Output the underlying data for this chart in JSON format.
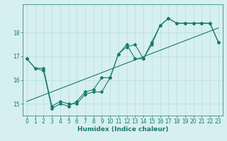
{
  "xlabel": "Humidex (Indice chaleur)",
  "ylabel": "",
  "bg_color": "#d6eff0",
  "grid_color": "#b8dde0",
  "line_color": "#1a7a6e",
  "xlim": [
    -0.5,
    23.5
  ],
  "ylim": [
    14.5,
    19.2
  ],
  "yticks": [
    15,
    16,
    17,
    18
  ],
  "xticks": [
    0,
    1,
    2,
    3,
    4,
    5,
    6,
    7,
    8,
    9,
    10,
    11,
    12,
    13,
    14,
    15,
    16,
    17,
    18,
    19,
    20,
    21,
    22,
    23
  ],
  "series1_x": [
    0,
    1,
    2,
    3,
    4,
    5,
    6,
    7,
    8,
    9,
    10,
    11,
    12,
    13,
    14,
    15,
    16,
    17,
    18,
    19,
    20,
    21,
    22,
    23
  ],
  "series1_y": [
    16.9,
    16.5,
    16.5,
    14.9,
    15.1,
    15.0,
    15.0,
    15.4,
    15.5,
    15.5,
    16.1,
    17.1,
    17.4,
    17.5,
    16.9,
    17.6,
    18.3,
    18.6,
    18.4,
    18.4,
    18.4,
    18.4,
    18.4,
    17.6
  ],
  "series2_x": [
    0,
    1,
    2,
    3,
    4,
    5,
    6,
    7,
    8,
    9,
    10,
    11,
    12,
    13,
    14,
    15,
    16,
    17,
    18,
    19,
    20,
    21,
    22,
    23
  ],
  "series2_y": [
    16.9,
    16.5,
    16.4,
    14.8,
    15.0,
    14.9,
    15.1,
    15.5,
    15.6,
    16.1,
    16.1,
    17.1,
    17.5,
    16.9,
    16.9,
    17.5,
    18.3,
    18.6,
    18.4,
    18.4,
    18.4,
    18.4,
    18.4,
    17.6
  ],
  "trend_x": [
    0,
    23
  ],
  "trend_y": [
    15.1,
    18.2
  ],
  "font_size_label": 6.5,
  "font_size_tick": 5.5,
  "marker_size": 2.0,
  "line_width": 0.8
}
